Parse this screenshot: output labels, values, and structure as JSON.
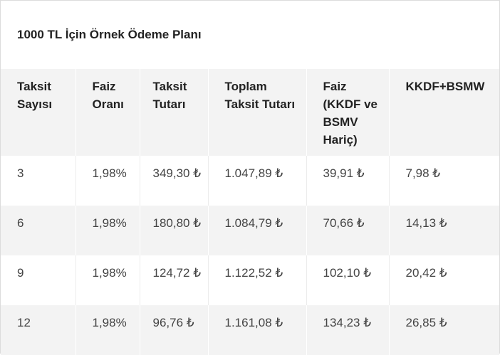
{
  "table": {
    "title": "1000 TL İçin Örnek Ödeme Planı",
    "headers": [
      "Taksit Sayısı",
      "Faiz Oranı",
      "Taksit Tutarı",
      "Toplam Taksit Tutarı",
      "Faiz (KKDF ve BSMV Hariç)",
      "KKDF+BSMW"
    ],
    "rows": [
      [
        "3",
        "1,98%",
        "349,30 ₺",
        "1.047,89 ₺",
        "39,91 ₺",
        "7,98 ₺"
      ],
      [
        "6",
        "1,98%",
        "180,80 ₺",
        "1.084,79 ₺",
        "70,66 ₺",
        "14,13 ₺"
      ],
      [
        "9",
        "1,98%",
        "124,72 ₺",
        "1.122,52 ₺",
        "102,10 ₺",
        "20,42 ₺"
      ],
      [
        "12",
        "1,98%",
        "96,76 ₺",
        "1.161,08 ₺",
        "134,23 ₺",
        "26,85 ₺"
      ]
    ]
  }
}
